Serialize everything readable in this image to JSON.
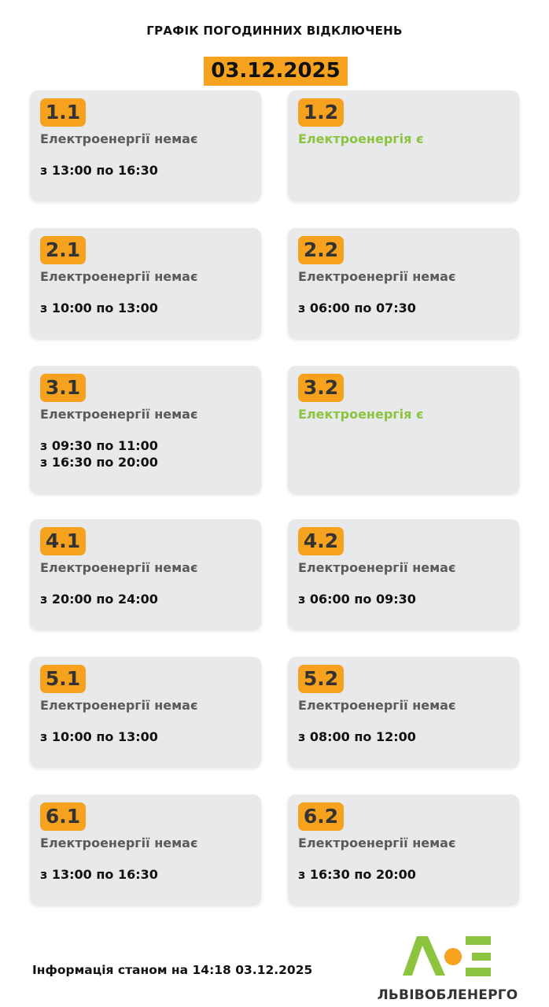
{
  "header": {
    "title": "ГРАФІК ПОГОДИННИХ ВІДКЛЮЧЕНЬ",
    "date": "03.12.2025"
  },
  "colors": {
    "accent": "#f6a21e",
    "power_on": "#8cc43f",
    "power_off": "#5a5a5a",
    "card_bg": "#e8e9eb"
  },
  "groups": [
    {
      "id": "1.1",
      "status": "Електроенергії немає",
      "power": false,
      "times": [
        "з 13:00 по 16:30"
      ]
    },
    {
      "id": "1.2",
      "status": "Електроенергія є",
      "power": true,
      "times": []
    },
    {
      "id": "2.1",
      "status": "Електроенергії немає",
      "power": false,
      "times": [
        "з 10:00 по 13:00"
      ]
    },
    {
      "id": "2.2",
      "status": "Електроенергії немає",
      "power": false,
      "times": [
        "з 06:00 по 07:30"
      ]
    },
    {
      "id": "3.1",
      "status": "Електроенергії немає",
      "power": false,
      "times": [
        "з 09:30 по 11:00",
        "з 16:30 по 20:00"
      ]
    },
    {
      "id": "3.2",
      "status": "Електроенергія є",
      "power": true,
      "times": []
    },
    {
      "id": "4.1",
      "status": "Електроенергії немає",
      "power": false,
      "times": [
        "з 20:00 по 24:00"
      ]
    },
    {
      "id": "4.2",
      "status": "Електроенергії немає",
      "power": false,
      "times": [
        "з 06:00 по 09:30"
      ]
    },
    {
      "id": "5.1",
      "status": "Електроенергії немає",
      "power": false,
      "times": [
        "з 10:00 по 13:00"
      ]
    },
    {
      "id": "5.2",
      "status": "Електроенергії немає",
      "power": false,
      "times": [
        "з 08:00 по 12:00"
      ]
    },
    {
      "id": "6.1",
      "status": "Електроенергії немає",
      "power": false,
      "times": [
        "з 13:00 по 16:30"
      ]
    },
    {
      "id": "6.2",
      "status": "Електроенергії немає",
      "power": false,
      "times": [
        "з 16:30 по 20:00"
      ]
    }
  ],
  "footer": {
    "info": "Інформація станом на 14:18 03.12.2025",
    "logo_text": "ЛЬВІВОБЛЕНЕРГО"
  }
}
